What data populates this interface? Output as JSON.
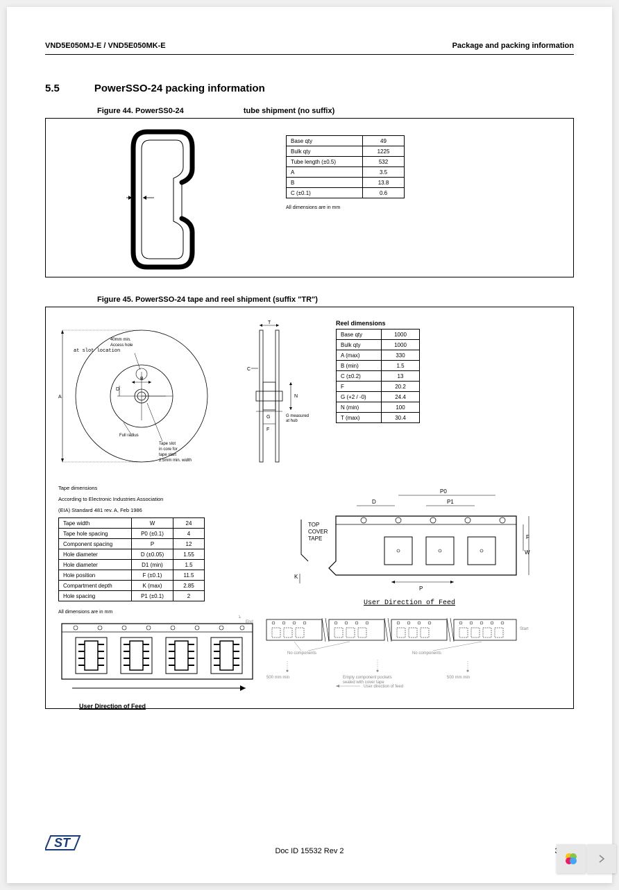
{
  "header": {
    "left": "VND5E050MJ-E / VND5E050MK-E",
    "right": "Package and packing information"
  },
  "section": {
    "number": "5.5",
    "title": "PowerSSO-24 packing information"
  },
  "fig44": {
    "caption_a": "Figure 44. PowerSS0-24",
    "caption_b": "tube shipment (no suffix)",
    "table": [
      [
        "Base qty",
        "49"
      ],
      [
        "Bulk qty",
        "1225"
      ],
      [
        "Tube length (±0.5)",
        "532"
      ],
      [
        "A",
        "3.5"
      ],
      [
        "B",
        "13.8"
      ],
      [
        "C (±0.1)",
        "0.6"
      ]
    ],
    "note": "All dimensions are in mm"
  },
  "fig45": {
    "caption": "Figure 45. PowerSSO-24 tape and reel shipment (suffix \"TR\")",
    "reel_title": "Reel dimensions",
    "reel_table": [
      [
        "Base qty",
        "1000"
      ],
      [
        "Bulk qty",
        "1000"
      ],
      [
        "A (max)",
        "330"
      ],
      [
        "B (min)",
        "1.5"
      ],
      [
        "C (±0.2)",
        "13"
      ],
      [
        "F",
        "20.2"
      ],
      [
        "G (+2 / -0)",
        "24.4"
      ],
      [
        "N (min)",
        "100"
      ],
      [
        "T (max)",
        "30.4"
      ]
    ],
    "reel_labels": {
      "access": "40mm min.\nAccess hole\nat slot location",
      "full_radius": "Full radius",
      "tape_slot": "Tape slot\nin core for\ntape start\n2.5mm min. width",
      "g_meas": "G measured\nat hub"
    },
    "tape_note1": "Tape dimensions",
    "tape_note2": "According to Electronic Industries Association",
    "tape_note3": "(EIA) Standard 481 rev. A, Feb 1986",
    "tape_table": {
      "rows": [
        [
          "Tape width",
          "W",
          "24"
        ],
        [
          "Tape hole spacing",
          "P0 (±0.1)",
          "4"
        ],
        [
          "Component spacing",
          "P",
          "12"
        ],
        [
          "Hole diameter",
          "D (±0.05)",
          "1.55"
        ],
        [
          "Hole diameter",
          "D1 (min)",
          "1.5"
        ],
        [
          "Hole position",
          "F (±0.1)",
          "11.5"
        ],
        [
          "Compartment depth",
          "K (max)",
          "2.85"
        ],
        [
          "Hole spacing",
          "P1 (±0.1)",
          "2"
        ]
      ]
    },
    "dim_note": "All dimensions are in mm",
    "top_cover": "TOP\nCOVER\nTAPE",
    "feed_label": "User Direction of Feed",
    "bottom_labels": {
      "end": "End",
      "no_comp1": "No components",
      "no_comp2": "No components",
      "start": "Start",
      "cover_tape": "cover\ntape",
      "carrier_tape": "500 mm min",
      "empty_pockets": "Empty component pockets\nsealed with cover tape",
      "user_dir": "User direction of feed",
      "dist500": "500 mm min"
    }
  },
  "footer": {
    "docid": "Doc ID 15532 Rev 2",
    "pagenum": "37/40"
  },
  "colors": {
    "st_blue": "#1a3c7a",
    "line": "#000000",
    "petal_y": "#f5c518",
    "petal_g": "#8bc34a",
    "petal_b": "#42a5f5",
    "petal_p": "#e91e63"
  }
}
